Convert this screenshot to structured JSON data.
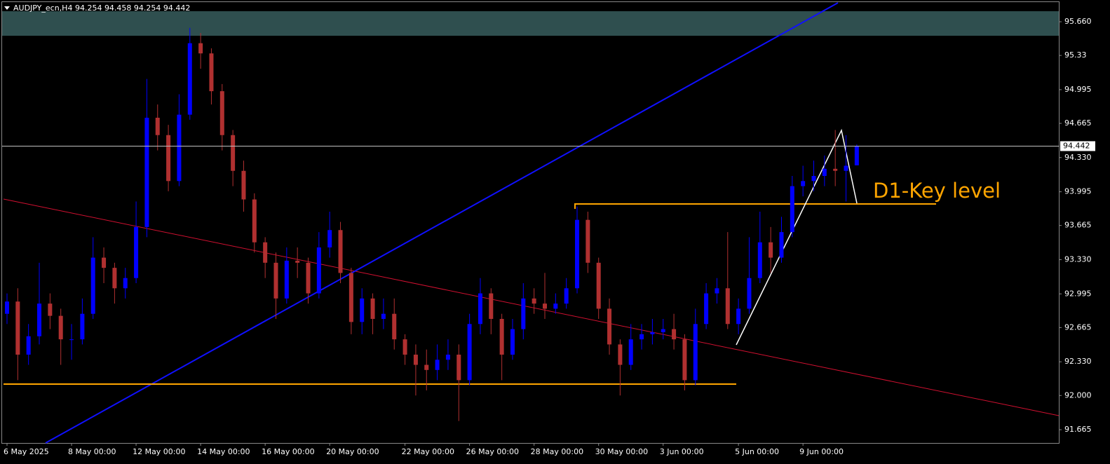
{
  "chart_data": {
    "type": "candlestick",
    "header": "AUDJPY_ecn,H4  94.254 94.458 94.254 94.442",
    "annotation": "D1-Key level",
    "price_label": 94.442,
    "up_color": "#0000ff",
    "down_color": "#b03030",
    "ylim": [
      91.535,
      95.873
    ],
    "yticks": [
      {
        "value": 95.66,
        "label": "95.660"
      },
      95.33,
      94.995,
      94.665,
      {
        "value": 94.33,
        "label": "94.330"
      },
      93.995,
      93.665,
      {
        "value": 93.33,
        "label": "93.330"
      },
      92.995,
      92.665,
      {
        "value": 92.33,
        "label": "92.330"
      },
      {
        "value": 92,
        "label": "92.000"
      },
      91.665
    ],
    "categories": [
      "6 May 2025",
      null,
      null,
      null,
      null,
      null,
      "8 May 00:00",
      null,
      null,
      null,
      null,
      null,
      "12 May 00:00",
      null,
      null,
      null,
      null,
      null,
      "14 May 00:00",
      null,
      null,
      null,
      null,
      null,
      "16 May 00:00",
      null,
      null,
      null,
      null,
      null,
      "20 May 00:00",
      null,
      null,
      null,
      null,
      null,
      null,
      "22 May 00:00",
      null,
      null,
      null,
      null,
      null,
      "26 May 00:00",
      null,
      null,
      null,
      null,
      null,
      "28 May 00:00",
      null,
      null,
      null,
      null,
      null,
      "30 May 00:00",
      null,
      null,
      null,
      null,
      null,
      "3 Jun 00:00",
      null,
      null,
      null,
      null,
      null,
      null,
      "5 Jun 00:00",
      null,
      null,
      null,
      null,
      null,
      "9 Jun 00:00",
      null,
      null,
      null,
      null,
      null
    ],
    "open": [
      92.8,
      92.92,
      92.4,
      92.58,
      92.9,
      92.78,
      92.55,
      92.55,
      92.8,
      93.35,
      93.25,
      93.05,
      93.15,
      93.65,
      94.72,
      94.55,
      94.1,
      94.75,
      95.45,
      95.35,
      94.98,
      94.55,
      94.2,
      93.92,
      93.5,
      93.3,
      92.95,
      93.32,
      93.3,
      93.0,
      93.45,
      93.62,
      93.2,
      92.72,
      92.95,
      92.75,
      92.8,
      92.55,
      92.4,
      92.3,
      92.25,
      92.35,
      92.4,
      92.15,
      92.7,
      93.0,
      92.75,
      92.4,
      92.65,
      92.95,
      92.9,
      92.85,
      92.9,
      93.05,
      93.72,
      93.3,
      92.85,
      92.5,
      92.3,
      92.55,
      92.6,
      92.62,
      92.65,
      92.55,
      92.15,
      92.7,
      93.0,
      93.05,
      92.7,
      92.85,
      93.15,
      93.5,
      93.35,
      93.6,
      94.05,
      94.1,
      94.15,
      94.22,
      94.2,
      94.254
    ],
    "high": [
      93.0,
      93.05,
      92.7,
      93.3,
      93.0,
      92.85,
      92.7,
      92.95,
      93.55,
      93.45,
      93.3,
      93.25,
      93.9,
      95.1,
      94.85,
      94.65,
      94.95,
      95.6,
      95.55,
      95.4,
      95.05,
      94.6,
      94.3,
      93.98,
      93.55,
      93.4,
      93.45,
      93.45,
      93.35,
      93.6,
      93.8,
      93.7,
      93.25,
      93.05,
      93.0,
      92.95,
      92.95,
      92.6,
      92.5,
      92.45,
      92.5,
      92.55,
      92.5,
      92.8,
      93.15,
      93.05,
      92.8,
      92.75,
      93.1,
      93.05,
      93.2,
      93.0,
      93.15,
      93.85,
      93.8,
      93.35,
      92.95,
      92.55,
      92.7,
      92.7,
      92.75,
      92.75,
      92.8,
      92.6,
      92.85,
      93.1,
      93.15,
      93.6,
      92.95,
      93.55,
      93.8,
      93.65,
      93.75,
      94.15,
      94.25,
      94.3,
      94.35,
      94.6,
      94.55,
      94.458
    ],
    "low": [
      92.7,
      92.15,
      92.3,
      92.5,
      92.65,
      92.3,
      92.35,
      92.5,
      92.75,
      93.1,
      92.9,
      92.95,
      93.1,
      93.55,
      94.4,
      94.0,
      94.05,
      94.7,
      95.2,
      94.85,
      94.4,
      94.05,
      93.8,
      93.4,
      93.15,
      92.75,
      92.9,
      93.15,
      92.9,
      92.95,
      93.35,
      93.1,
      92.6,
      92.6,
      92.6,
      92.65,
      92.45,
      92.3,
      92.0,
      92.05,
      92.15,
      92.25,
      91.75,
      92.1,
      92.6,
      92.6,
      92.15,
      92.35,
      92.55,
      92.8,
      92.75,
      92.8,
      92.85,
      93.0,
      93.2,
      92.75,
      92.4,
      92.0,
      92.25,
      92.45,
      92.5,
      92.55,
      92.45,
      92.05,
      92.1,
      92.65,
      92.9,
      92.65,
      92.6,
      92.8,
      93.1,
      93.2,
      93.3,
      93.55,
      93.95,
      94.0,
      94.05,
      94.05,
      93.9,
      94.254
    ],
    "close": [
      92.92,
      92.4,
      92.58,
      92.9,
      92.78,
      92.55,
      92.55,
      92.8,
      93.35,
      93.25,
      93.05,
      93.15,
      93.65,
      94.72,
      94.55,
      94.1,
      94.75,
      95.45,
      95.35,
      94.98,
      94.55,
      94.2,
      93.92,
      93.5,
      93.3,
      92.95,
      93.32,
      93.3,
      93.0,
      93.45,
      93.62,
      93.2,
      92.72,
      92.95,
      92.75,
      92.8,
      92.55,
      92.4,
      92.3,
      92.25,
      92.35,
      92.4,
      92.15,
      92.7,
      93.0,
      92.75,
      92.4,
      92.65,
      92.95,
      92.9,
      92.85,
      92.9,
      93.05,
      93.72,
      93.3,
      92.85,
      92.5,
      92.3,
      92.55,
      92.6,
      92.62,
      92.65,
      92.55,
      92.15,
      92.7,
      93.0,
      93.05,
      92.7,
      92.85,
      93.15,
      93.5,
      93.35,
      93.6,
      94.05,
      94.1,
      94.15,
      94.22,
      94.2,
      94.25,
      94.442
    ]
  }
}
